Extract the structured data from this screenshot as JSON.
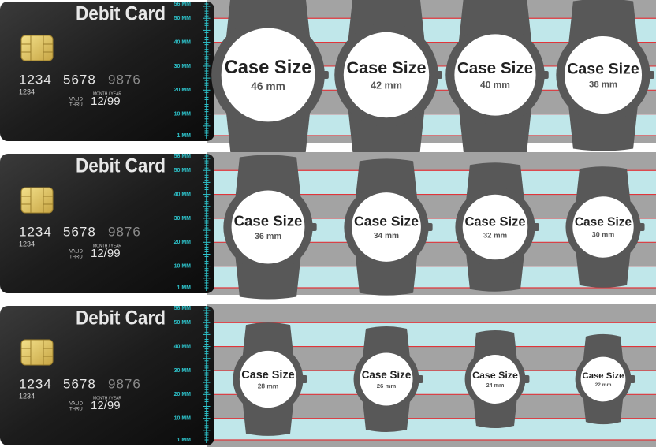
{
  "card": {
    "title": "Debit Card",
    "number": [
      "1234",
      "5678",
      "9876"
    ],
    "small_number": "1234",
    "valid": [
      "VALID",
      "THRU"
    ],
    "month_year": "MONTH / YEAR",
    "expiry": "12/99"
  },
  "ruler": {
    "labels": [
      "56 MM",
      "50 MM",
      "40 MM",
      "30 MM",
      "20 MM",
      "10 MM",
      "1 MM"
    ]
  },
  "panels": [
    {
      "watches": [
        {
          "label": "Case Size",
          "size": "46 mm"
        },
        {
          "label": "Case Size",
          "size": "42 mm"
        },
        {
          "label": "Case Size",
          "size": "40 mm"
        },
        {
          "label": "Case Size",
          "size": "38 mm"
        }
      ]
    },
    {
      "watches": [
        {
          "label": "Case Size",
          "size": "36 mm"
        },
        {
          "label": "Case Size",
          "size": "34 mm"
        },
        {
          "label": "Case Size",
          "size": "32 mm"
        },
        {
          "label": "Case Size",
          "size": "30 mm"
        }
      ]
    },
    {
      "watches": [
        {
          "label": "Case Size",
          "size": "28 mm"
        },
        {
          "label": "Case Size",
          "size": "26 mm"
        },
        {
          "label": "Case Size",
          "size": "24 mm"
        },
        {
          "label": "Case Size",
          "size": "22 mm"
        }
      ]
    }
  ]
}
